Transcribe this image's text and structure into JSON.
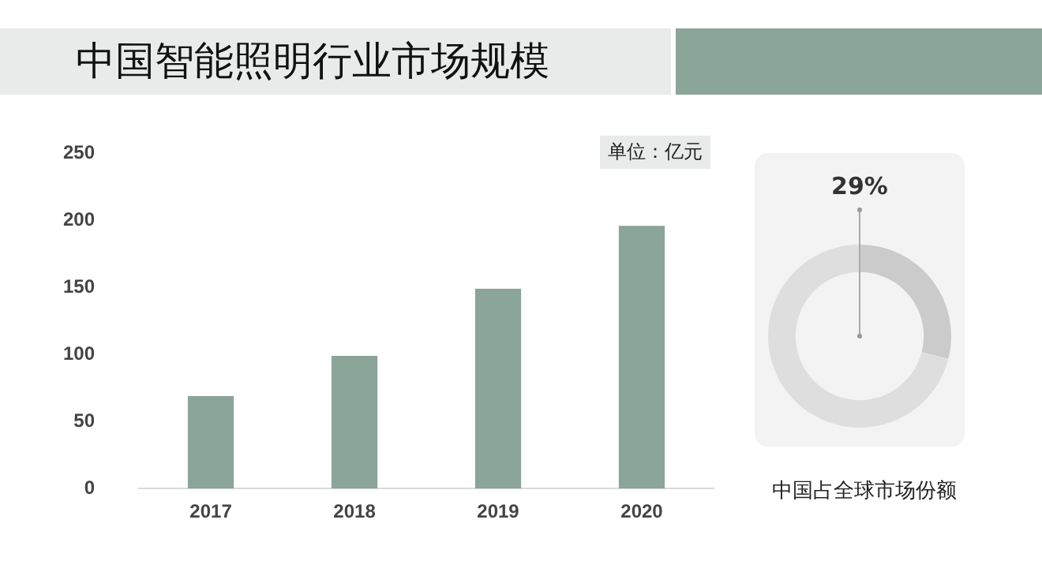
{
  "chart_data": [
    {
      "type": "bar",
      "title": "中国智能照明行业市场规模",
      "categories": [
        "2017",
        "2018",
        "2019",
        "2020"
      ],
      "values": [
        69,
        99,
        149,
        196
      ],
      "color": "#8ba598",
      "ylim": [
        0,
        250
      ],
      "yticks": [
        0,
        50,
        100,
        150,
        200,
        250
      ],
      "grid": false,
      "annotations": [
        "单位：亿元"
      ]
    },
    {
      "type": "donut",
      "title": "中国占全球市场份额",
      "categories": [
        null,
        null
      ],
      "values": [
        29,
        71
      ],
      "colors": [
        "#cbcbcb",
        "#dedede"
      ],
      "value_labels": [
        "29%",
        null
      ]
    }
  ]
}
